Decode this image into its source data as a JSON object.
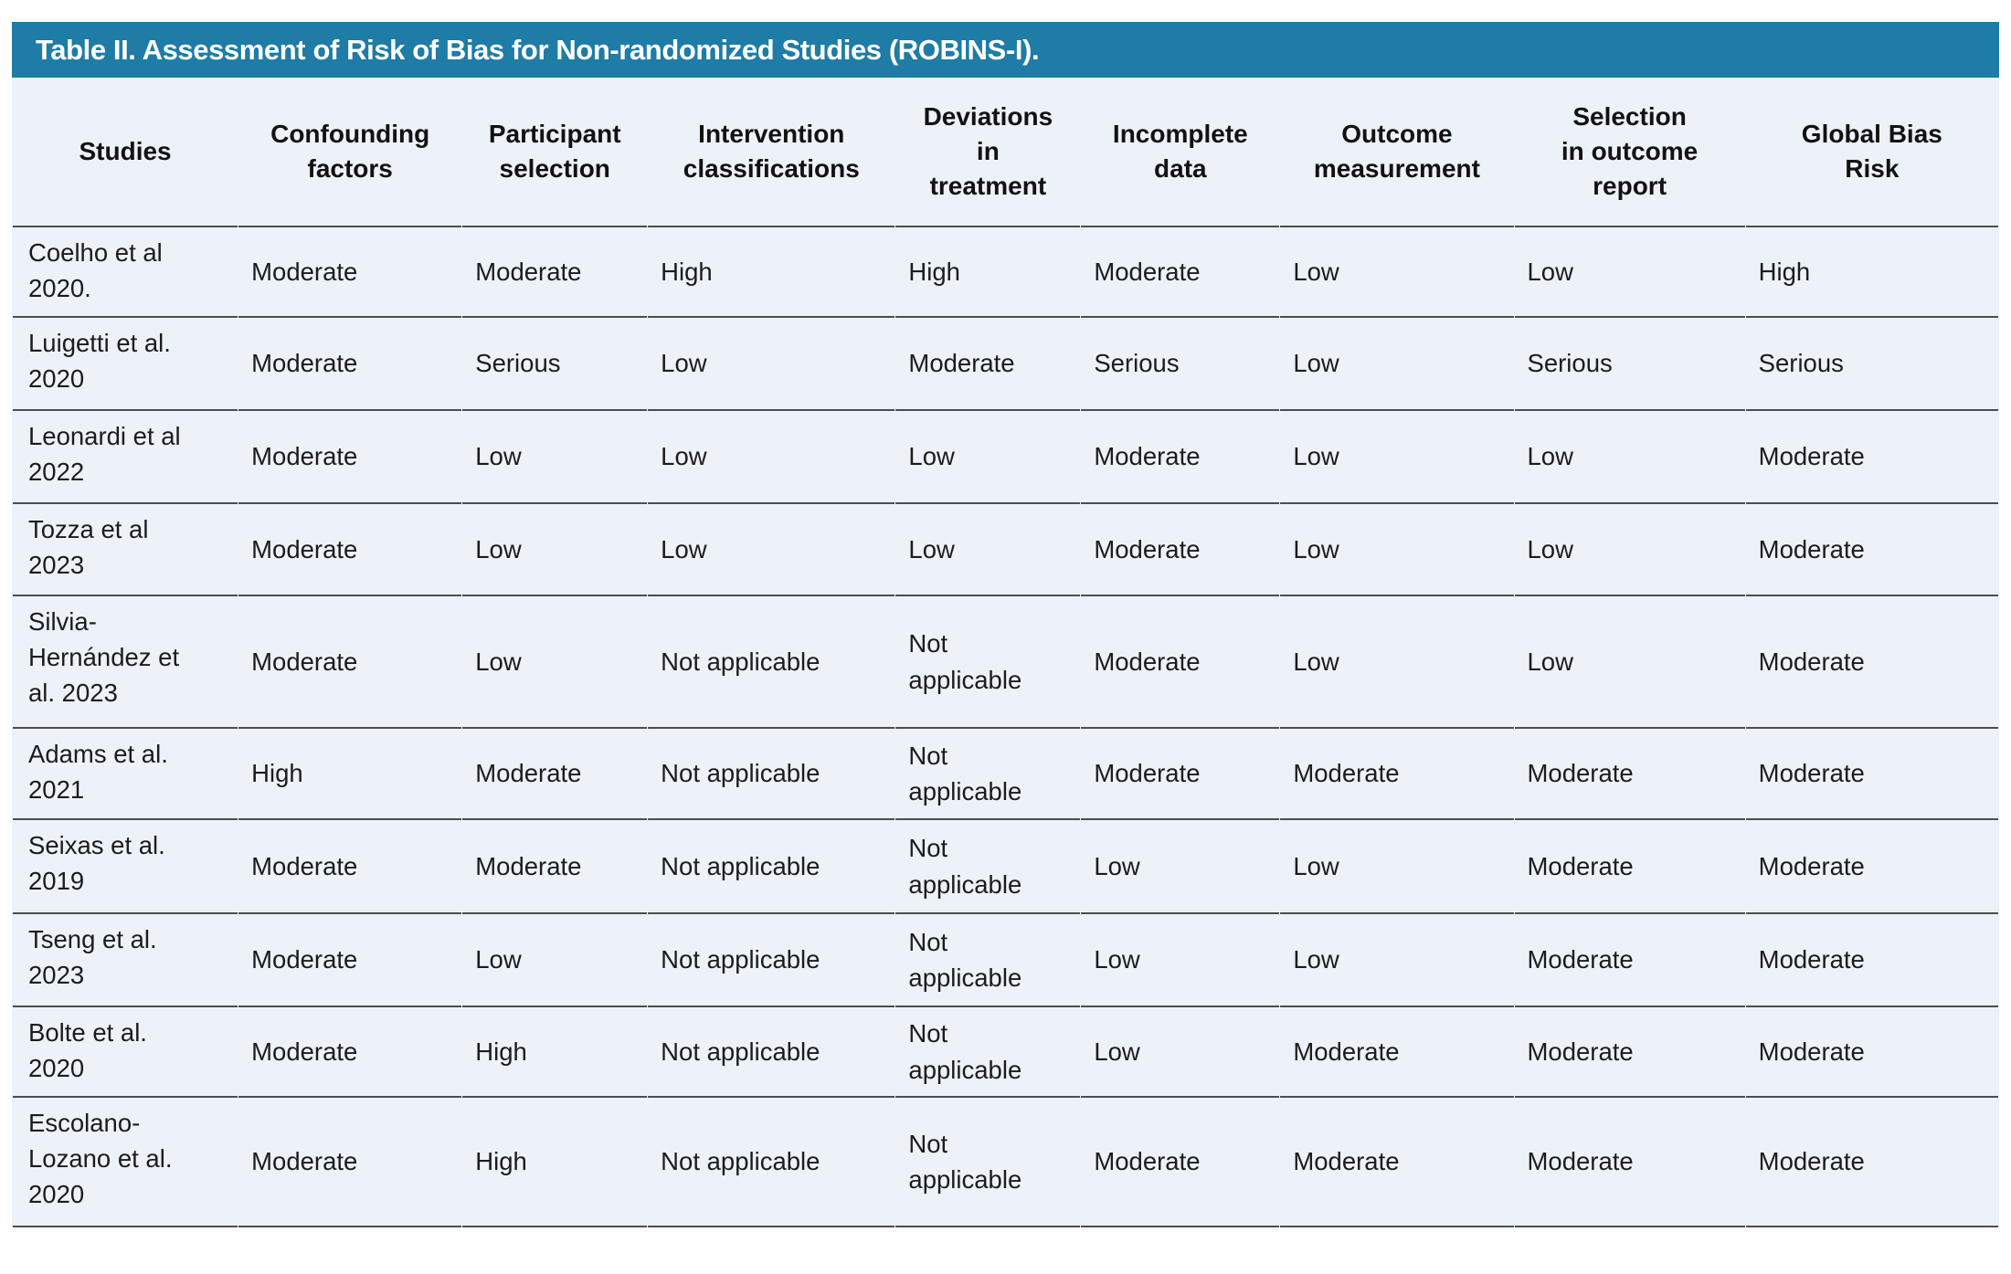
{
  "colors": {
    "title_bar_background": "#1E7CA6",
    "title_text": "#FFFFFF",
    "table_background": "#EDF1F8",
    "divider_line": "#4D4D4F",
    "body_text": "#1C1C1C"
  },
  "title_bar": {
    "label": "Table II. Assessment of Risk of Bias for Non-randomized Studies (ROBINS-I)."
  },
  "table": {
    "columns": [
      {
        "label": "Studies"
      },
      {
        "label": "Confounding\nfactors"
      },
      {
        "label": "Participant\nselection"
      },
      {
        "label": "Intervention\nclassifications"
      },
      {
        "label": "Deviations\nin\ntreatment"
      },
      {
        "label": "Incomplete\ndata"
      },
      {
        "label": "Outcome\nmeasurement"
      },
      {
        "label": "Selection\nin outcome\nreport"
      },
      {
        "label": "Global Bias\nRisk"
      }
    ],
    "rows": [
      {
        "study": "Coelho et al\n2020.",
        "values": [
          "Moderate",
          "Moderate",
          "High",
          "High",
          "Moderate",
          "Low",
          "Low",
          "High"
        ]
      },
      {
        "study": "Luigetti et al.\n2020",
        "values": [
          "Moderate",
          "Serious",
          "Low",
          "Moderate",
          "Serious",
          "Low",
          "Serious",
          "Serious"
        ]
      },
      {
        "study": "Leonardi et al\n2022",
        "values": [
          "Moderate",
          "Low",
          "Low",
          "Low",
          "Moderate",
          "Low",
          "Low",
          "Moderate"
        ]
      },
      {
        "study": "Tozza et al\n2023",
        "values": [
          "Moderate",
          "Low",
          "Low",
          "Low",
          "Moderate",
          "Low",
          "Low",
          "Moderate"
        ]
      },
      {
        "study": "Silvia-\nHernández et\nal. 2023",
        "values": [
          "Moderate",
          "Low",
          "Not applicable",
          "Not\napplicable",
          "Moderate",
          "Low",
          "Low",
          "Moderate"
        ]
      },
      {
        "study": "Adams et al.\n2021",
        "values": [
          "High",
          "Moderate",
          "Not applicable",
          "Not\napplicable",
          "Moderate",
          "Moderate",
          "Moderate",
          "Moderate"
        ]
      },
      {
        "study": "Seixas et al.\n2019",
        "values": [
          "Moderate",
          "Moderate",
          "Not applicable",
          "Not\napplicable",
          "Low",
          "Low",
          "Moderate",
          "Moderate"
        ]
      },
      {
        "study": "Tseng et al.\n2023",
        "values": [
          "Moderate",
          "Low",
          "Not applicable",
          "Not\napplicable",
          "Low",
          "Low",
          "Moderate",
          "Moderate"
        ]
      },
      {
        "study": "Bolte et al.\n2020",
        "values": [
          "Moderate",
          "High",
          "Not applicable",
          "Not\napplicable",
          "Low",
          "Moderate",
          "Moderate",
          "Moderate"
        ]
      },
      {
        "study": "Escolano-\nLozano et al.\n2020",
        "values": [
          "Moderate",
          "High",
          "Not applicable",
          "Not\napplicable",
          "Moderate",
          "Moderate",
          "Moderate",
          "Moderate"
        ]
      }
    ]
  }
}
